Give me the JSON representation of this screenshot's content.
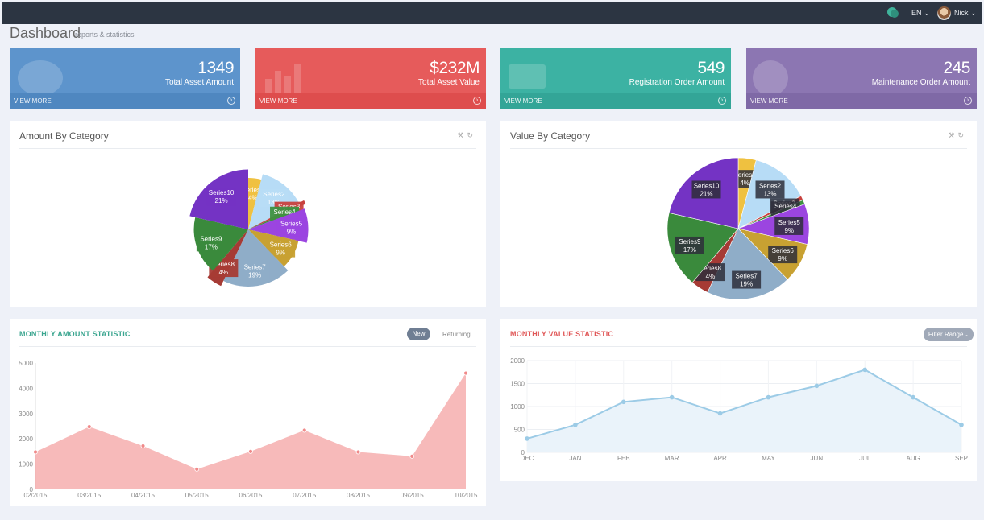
{
  "topbar": {
    "language": "EN ⌄",
    "user_name": "Nick ⌄"
  },
  "page": {
    "title": "Dashboard",
    "subtitle": "reports & statistics"
  },
  "stats": [
    {
      "value": "1349",
      "label": "Total Asset Amount",
      "link": "VIEW MORE",
      "color": "#5d94cc",
      "footer_color": "#4f87c0",
      "icon": "globe-icon"
    },
    {
      "value": "$232M",
      "label": "Total Asset Value",
      "link": "VIEW MORE",
      "color": "#e65b5b",
      "footer_color": "#de4d4d",
      "icon": "bar-chart-icon"
    },
    {
      "value": "549",
      "label": "Registration Order Amount",
      "link": "VIEW MORE",
      "color": "#3cb2a3",
      "footer_color": "#33a597",
      "icon": "card-icon"
    },
    {
      "value": "245",
      "label": "Maintenance Order Amount",
      "link": "VIEW MORE",
      "color": "#8c76b2",
      "footer_color": "#7f69a6",
      "icon": "globe-icon"
    }
  ],
  "amount_card": {
    "title": "Amount By Category"
  },
  "value_card": {
    "title": "Value By Category"
  },
  "monthly_amount": {
    "title": "MONTHLY AMOUNT STATISTIC",
    "tab_new": "New",
    "tab_returning": "Returning",
    "title_color": "#3aa58f"
  },
  "monthly_value": {
    "title": "MONTHLY VALUE STATISTIC",
    "filter": "Filter Range⌄",
    "title_color": "#e05858"
  },
  "chart_data": [
    {
      "type": "pie",
      "title": "Amount By Category",
      "categories": [
        "Series1",
        "Series2",
        "Series3",
        "Series4",
        "Series5",
        "Series6",
        "Series7",
        "Series8",
        "Series9",
        "Series10"
      ],
      "values": [
        4,
        13,
        1,
        1,
        9,
        9,
        19,
        4,
        17,
        21
      ],
      "labels": [
        "4%",
        "13%",
        "1%",
        "1%",
        "9%",
        "9%",
        "19%",
        "4%",
        "17%",
        "21%"
      ],
      "colors": [
        "#efc140",
        "#b7dcf6",
        "#c8413e",
        "#3e9140",
        "#9b45e0",
        "#c8a132",
        "#8fadc8",
        "#a63b35",
        "#3a8a3c",
        "#7433c4"
      ]
    },
    {
      "type": "pie",
      "title": "Value By Category",
      "categories": [
        "Series1",
        "Series2",
        "Series3",
        "Series4",
        "Series5",
        "Series6",
        "Series7",
        "Series8",
        "Series9",
        "Series10"
      ],
      "values": [
        4,
        13,
        1,
        1,
        9,
        9,
        19,
        4,
        17,
        21
      ],
      "labels": [
        "4%",
        "13%",
        "1%",
        "1%",
        "9%",
        "9%",
        "19%",
        "4%",
        "17%",
        "21%"
      ],
      "colors": [
        "#efc140",
        "#b7dcf6",
        "#c8413e",
        "#3e9140",
        "#9b45e0",
        "#c8a132",
        "#8fadc8",
        "#a63b35",
        "#3a8a3c",
        "#7433c4"
      ]
    },
    {
      "type": "area",
      "title": "MONTHLY AMOUNT STATISTIC",
      "x": [
        "02/2015",
        "03/2015",
        "04/2015",
        "05/2015",
        "06/2015",
        "07/2015",
        "08/2015",
        "09/2015",
        "10/2015"
      ],
      "values": [
        1480,
        2480,
        1720,
        800,
        1500,
        2340,
        1480,
        1310,
        4600
      ],
      "ylim": [
        0,
        5000
      ],
      "yticks": [
        0,
        1000,
        2000,
        3000,
        4000,
        5000
      ],
      "color": "#f4a3a3"
    },
    {
      "type": "line",
      "title": "MONTHLY VALUE STATISTIC",
      "x": [
        "DEC",
        "JAN",
        "FEB",
        "MAR",
        "APR",
        "MAY",
        "JUN",
        "JUL",
        "AUG",
        "SEP"
      ],
      "values": [
        300,
        600,
        1100,
        1200,
        850,
        1200,
        1450,
        1800,
        1200,
        600
      ],
      "ylim": [
        0,
        2000
      ],
      "yticks": [
        0,
        500,
        1000,
        1500,
        2000
      ],
      "color": "#9ccbe6",
      "grid": true
    }
  ]
}
